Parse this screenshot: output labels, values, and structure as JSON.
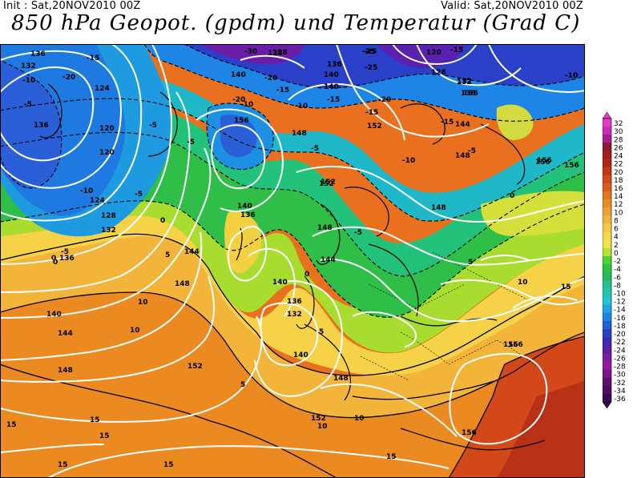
{
  "header": {
    "init": "Init : Sat,20NOV2010 00Z",
    "valid": "Valid: Sat,20NOV2010 00Z",
    "title": "850 hPa Geopot. (gpdm) und Temperatur (Grad C)"
  },
  "colorbar": {
    "labels": [
      "32",
      "30",
      "28",
      "26",
      "24",
      "22",
      "20",
      "18",
      "16",
      "14",
      "12",
      "10",
      "8",
      "6",
      "4",
      "2",
      "0",
      "-2",
      "-4",
      "-6",
      "-8",
      "-10",
      "-12",
      "-14",
      "-16",
      "-18",
      "-20",
      "-22",
      "-24",
      "-26",
      "-28",
      "-30",
      "-32",
      "-34",
      "-36"
    ],
    "colors": [
      "#e23cc6",
      "#c92ab8",
      "#a81e8e",
      "#8d1830",
      "#a11c1e",
      "#b32417",
      "#c63715",
      "#d24818",
      "#dd5c1c",
      "#e4741f",
      "#ea8c25",
      "#efa030",
      "#f3b43a",
      "#f6c845",
      "#f8da48",
      "#f0e648",
      "#b8e230",
      "#4dd42a",
      "#2bc441",
      "#27b95e",
      "#22c288",
      "#20c8b0",
      "#1fc4d6",
      "#1ea6e8",
      "#1e84e6",
      "#2060d8",
      "#2a40c8",
      "#3b2ab8",
      "#5a1ea8",
      "#7a1ea0",
      "#9418a0",
      "#7a1488",
      "#5c1070",
      "#4a0c60",
      "#3a0850"
    ]
  },
  "map": {
    "geopotential_labels": [
      "136",
      "128",
      "124",
      "120",
      "132",
      "136",
      "120",
      "124",
      "128",
      "132",
      "136",
      "140",
      "144",
      "148",
      "152",
      "156",
      "140",
      "136",
      "132",
      "148",
      "144",
      "140",
      "136",
      "152",
      "156",
      "156",
      "156",
      "140",
      "148",
      "152",
      "148",
      "140",
      "144",
      "148",
      "152",
      "156",
      "152",
      "156",
      "140",
      "136",
      "128",
      "132",
      "136",
      "144",
      "148",
      "120",
      "128",
      "132",
      "136",
      "156",
      "148",
      "140"
    ],
    "temperature_labels": [
      "-10",
      "-20",
      "-5",
      "-15",
      "-5",
      "-10",
      "-5",
      "-20",
      "-15",
      "-25",
      "-30",
      "-25",
      "-10",
      "-15",
      "-20",
      "-10",
      "-5",
      "0",
      "0",
      "-5",
      "-10",
      "-15",
      "-5",
      "0",
      "5",
      "5",
      "10",
      "10",
      "5",
      "10",
      "15",
      "15",
      "15",
      "15",
      "10",
      "15",
      "-5",
      "0",
      "5",
      "10",
      "15",
      "15",
      "-15",
      "-25",
      "-15",
      "-20",
      "-10",
      "-5",
      "0"
    ]
  }
}
